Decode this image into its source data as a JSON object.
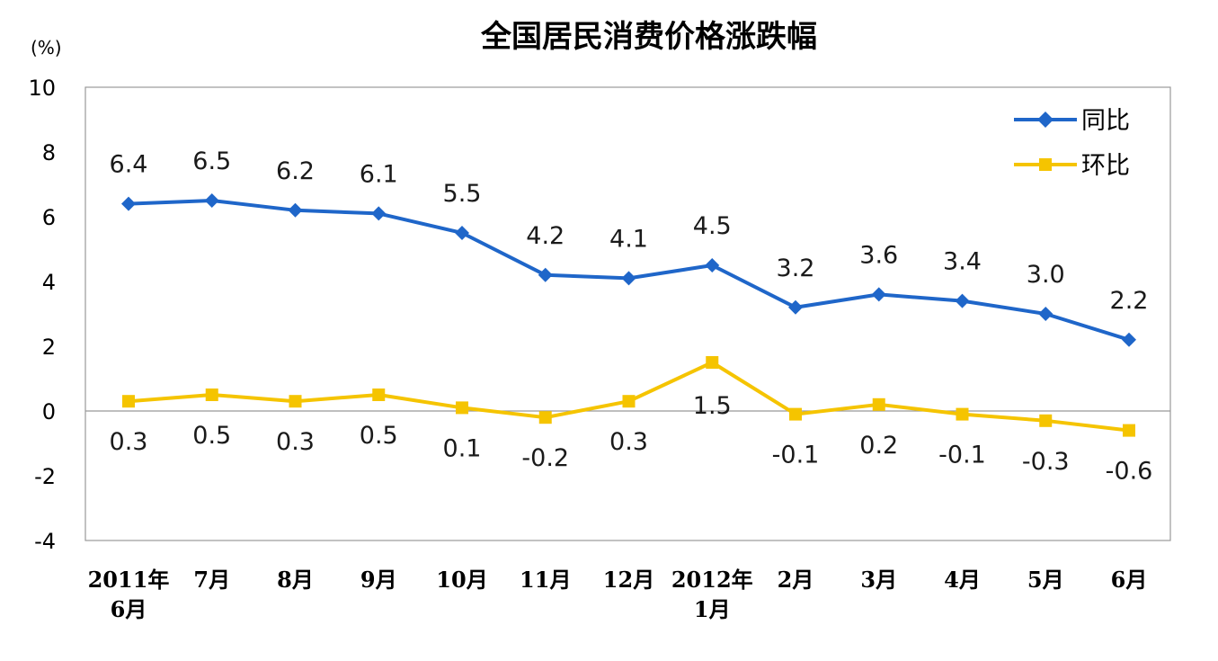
{
  "chart_data": {
    "type": "line",
    "title": "全国居民消费价格涨跌幅",
    "unit_label": "(%)",
    "xlabel": "",
    "ylabel": "",
    "categories": [
      [
        "2011年",
        "6月"
      ],
      [
        "7月"
      ],
      [
        "8月"
      ],
      [
        "9月"
      ],
      [
        "10月"
      ],
      [
        "11月"
      ],
      [
        "12月"
      ],
      [
        "2012年",
        "1月"
      ],
      [
        "2月"
      ],
      [
        "3月"
      ],
      [
        "4月"
      ],
      [
        "5月"
      ],
      [
        "6月"
      ]
    ],
    "ylim": [
      -4,
      10
    ],
    "yticks": [
      -4,
      -2,
      0,
      2,
      4,
      6,
      8,
      10
    ],
    "grid": false,
    "legend_position": "top-right",
    "series": [
      {
        "name": "同比",
        "color": "#1f66c9",
        "marker": "diamond",
        "values": [
          6.4,
          6.5,
          6.2,
          6.1,
          5.5,
          4.2,
          4.1,
          4.5,
          3.2,
          3.6,
          3.4,
          3.0,
          2.2
        ],
        "labels": [
          "6.4",
          "6.5",
          "6.2",
          "6.1",
          "5.5",
          "4.2",
          "4.1",
          "4.5",
          "3.2",
          "3.6",
          "3.4",
          "3.0",
          "2.2"
        ]
      },
      {
        "name": "环比",
        "color": "#f5c400",
        "marker": "square",
        "values": [
          0.3,
          0.5,
          0.3,
          0.5,
          0.1,
          -0.2,
          0.3,
          1.5,
          -0.1,
          0.2,
          -0.1,
          -0.3,
          -0.6
        ],
        "labels": [
          "0.3",
          "0.5",
          "0.3",
          "0.5",
          "0.1",
          "-0.2",
          "0.3",
          "1.5",
          "-0.1",
          "0.2",
          "-0.1",
          "-0.3",
          "-0.6"
        ]
      }
    ]
  }
}
